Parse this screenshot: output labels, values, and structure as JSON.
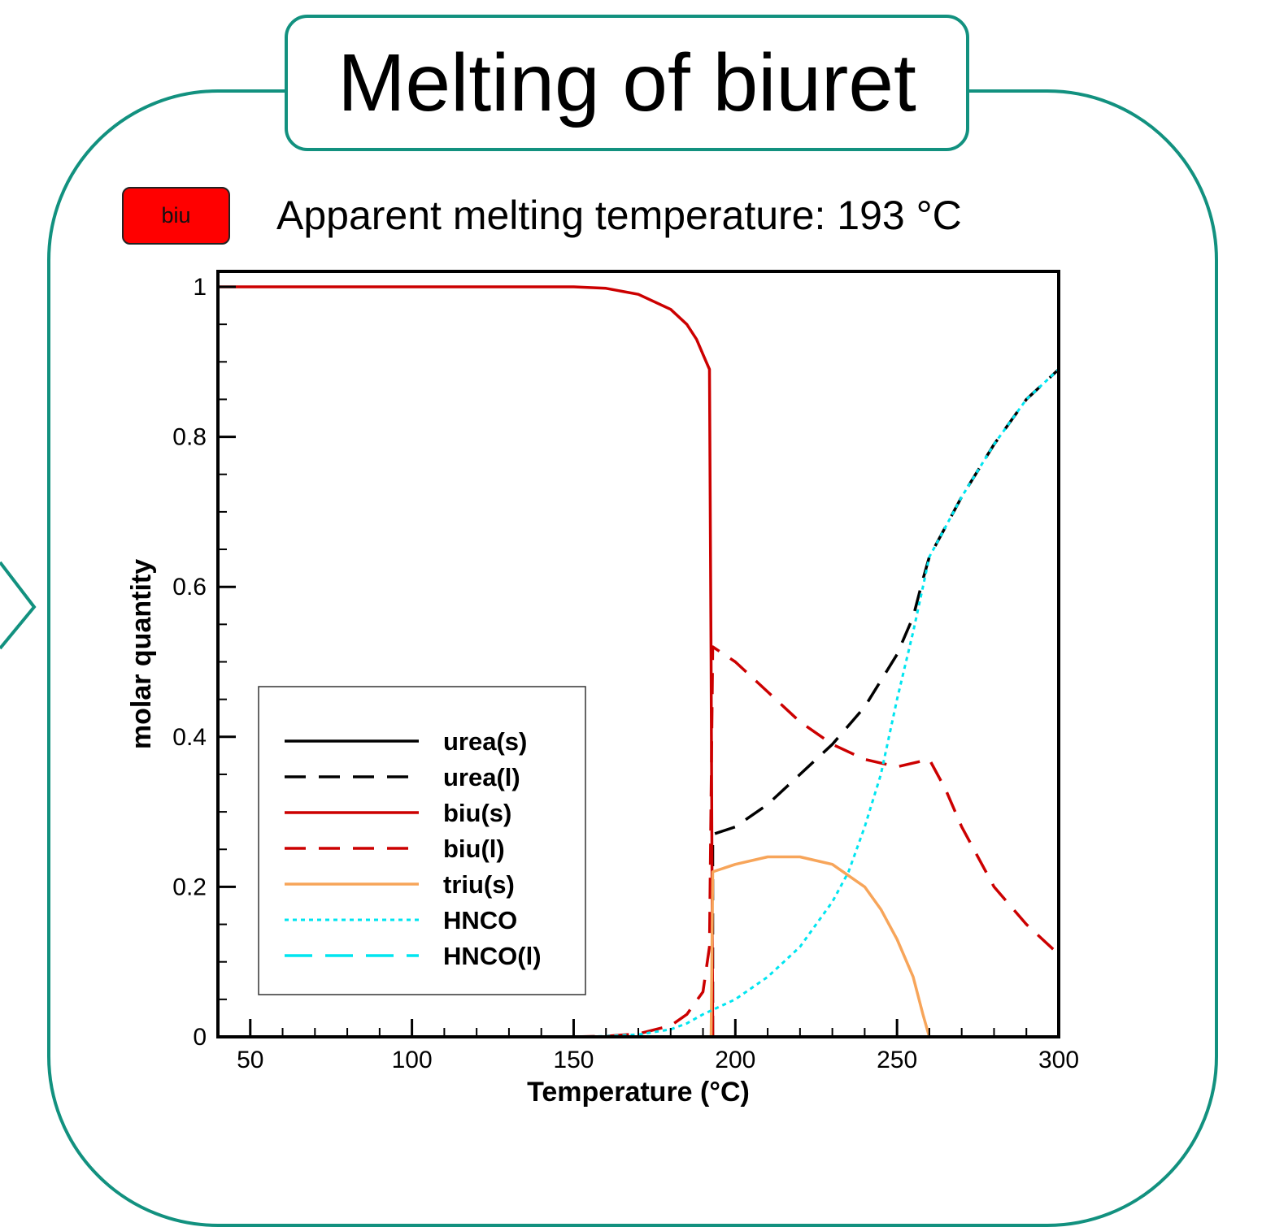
{
  "title": "Melting of biuret",
  "badge": {
    "label": "biu",
    "color": "#ff0000"
  },
  "subtitle": "Apparent melting temperature: 193 °C",
  "colors": {
    "frame": "#12917f"
  },
  "chart_data": {
    "type": "line",
    "xlabel": "Temperature (°C)",
    "ylabel": "molar quantity",
    "xlim": [
      40,
      300
    ],
    "ylim": [
      0,
      1
    ],
    "x_ticks": [
      50,
      100,
      150,
      200,
      250,
      300
    ],
    "y_ticks": [
      0,
      0.2,
      0.4,
      0.6,
      0.8,
      1
    ],
    "x_tick_labels": [
      "50",
      "100",
      "150",
      "200",
      "250",
      "300"
    ],
    "y_tick_labels": [
      "0",
      "0.2",
      "0.4",
      "0.6",
      "0.8",
      "1"
    ],
    "grid": false,
    "legend_position": "bottom-left",
    "series": [
      {
        "name": "urea(s)",
        "color": "#000000",
        "style": "solid",
        "x": [
          40,
          300
        ],
        "y": [
          0,
          0
        ]
      },
      {
        "name": "urea(l)",
        "color": "#000000",
        "style": "dashed",
        "x": [
          193,
          193,
          200,
          210,
          220,
          230,
          240,
          250,
          255,
          258,
          260,
          265,
          270,
          280,
          290,
          300
        ],
        "y": [
          0,
          0.27,
          0.28,
          0.31,
          0.35,
          0.39,
          0.44,
          0.51,
          0.56,
          0.61,
          0.64,
          0.68,
          0.72,
          0.79,
          0.85,
          0.89
        ]
      },
      {
        "name": "biu(s)",
        "color": "#cc0000",
        "style": "solid",
        "x": [
          40,
          100,
          150,
          160,
          170,
          180,
          185,
          188,
          190,
          191,
          192,
          192.5,
          193
        ],
        "y": [
          1,
          1,
          1,
          0.998,
          0.99,
          0.97,
          0.95,
          0.93,
          0.91,
          0.9,
          0.89,
          0.5,
          0
        ]
      },
      {
        "name": "biu(l)",
        "color": "#cc0000",
        "style": "dashed",
        "x": [
          150,
          160,
          170,
          180,
          185,
          190,
          192,
          193,
          200,
          210,
          220,
          230,
          240,
          250,
          255,
          260,
          265,
          270,
          280,
          290,
          300
        ],
        "y": [
          0,
          0.001,
          0.004,
          0.015,
          0.03,
          0.06,
          0.12,
          0.52,
          0.5,
          0.46,
          0.42,
          0.39,
          0.37,
          0.36,
          0.365,
          0.37,
          0.33,
          0.28,
          0.2,
          0.15,
          0.11
        ]
      },
      {
        "name": "triu(s)",
        "color": "#f7a55a",
        "style": "solid",
        "x": [
          150,
          192.5,
          193,
          200,
          210,
          220,
          230,
          240,
          245,
          250,
          255,
          258,
          260
        ],
        "y": [
          0,
          0,
          0.22,
          0.23,
          0.24,
          0.24,
          0.23,
          0.2,
          0.17,
          0.13,
          0.08,
          0.03,
          0
        ]
      },
      {
        "name": "HNCO",
        "color": "#00e5f0",
        "style": "dotted",
        "x": [
          150,
          160,
          170,
          180,
          185,
          190,
          195,
          200,
          205,
          210,
          215,
          220,
          225,
          230,
          235,
          240,
          245,
          250,
          255,
          258,
          260,
          265,
          270,
          280,
          290,
          300
        ],
        "y": [
          0,
          0.001,
          0.003,
          0.01,
          0.018,
          0.03,
          0.04,
          0.05,
          0.065,
          0.08,
          0.1,
          0.12,
          0.15,
          0.18,
          0.22,
          0.28,
          0.35,
          0.45,
          0.54,
          0.6,
          0.64,
          0.68,
          0.72,
          0.79,
          0.85,
          0.89
        ]
      },
      {
        "name": "HNCO(l)",
        "color": "#00e5f0",
        "style": "longdash",
        "x": [
          150,
          300
        ],
        "y": [
          0,
          0
        ]
      }
    ]
  }
}
